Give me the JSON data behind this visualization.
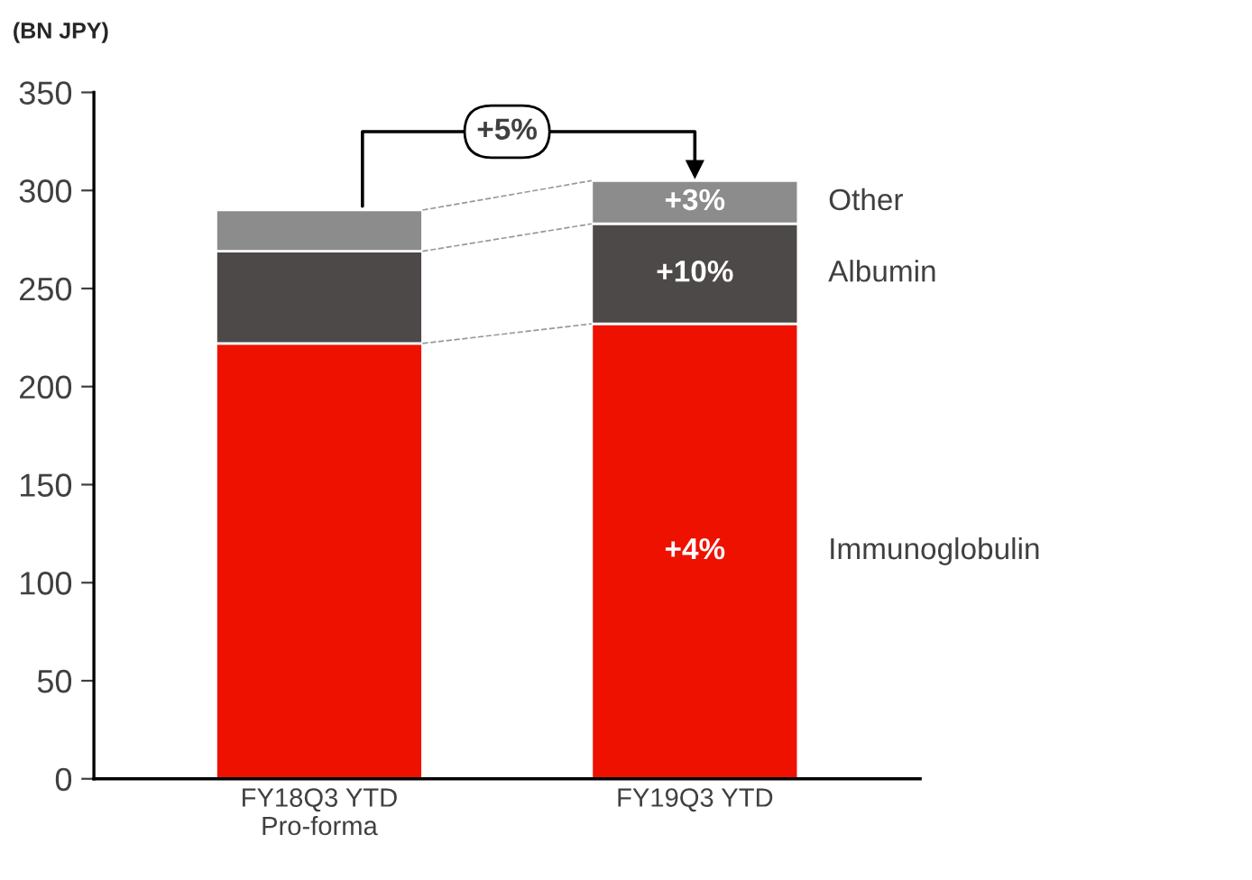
{
  "chart_data": {
    "type": "bar",
    "stacked": true,
    "ylabel": "(BN JPY)",
    "categories": [
      "FY18Q3 YTD\nPro-forma",
      "FY19Q3 YTD"
    ],
    "series": [
      {
        "name": "Immunoglobulin",
        "color": "#ee1100",
        "values": [
          222,
          232
        ]
      },
      {
        "name": "Albumin",
        "color": "#4d4948",
        "values": [
          47,
          51
        ]
      },
      {
        "name": "Other",
        "color": "#8c8c8c",
        "values": [
          21,
          22
        ]
      }
    ],
    "annotations": [
      "+5%",
      "+4%",
      "+10%",
      "+3%"
    ],
    "ylim": [
      0,
      350
    ],
    "yticks": [
      0,
      50,
      100,
      150,
      200,
      250,
      300,
      350
    ],
    "grid": false
  }
}
